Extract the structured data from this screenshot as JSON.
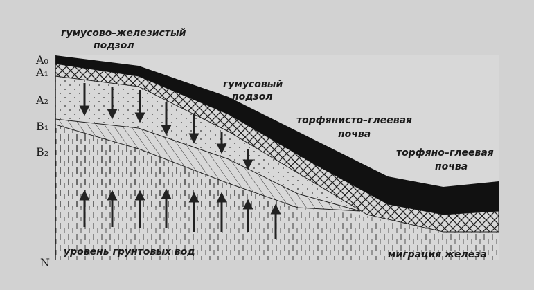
{
  "horizons": [
    "A₀",
    "A₁",
    "A₂",
    "B₁",
    "B₂",
    "N"
  ],
  "soil_types": [
    {
      "lines": [
        "гумусово–железистый",
        "подзол"
      ]
    },
    {
      "lines": [
        "гумусовый",
        "подзол"
      ]
    },
    {
      "lines": [
        "торфянисто–глеевая",
        "почва"
      ]
    },
    {
      "lines": [
        "торфяно–глеевая",
        "почва"
      ]
    }
  ],
  "groundwater": "уровень грунтовых вод",
  "iron_migration": "миграция железа"
}
